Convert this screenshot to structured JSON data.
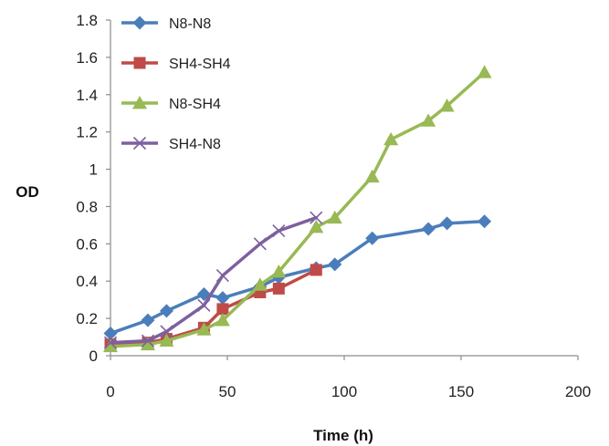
{
  "chart_data": {
    "type": "line",
    "title": "",
    "xlabel": "Time (h)",
    "ylabel": "OD",
    "xlim": [
      0,
      200
    ],
    "ylim": [
      0,
      1.8
    ],
    "xticks": [
      0,
      50,
      100,
      150,
      200
    ],
    "yticks": [
      0,
      0.2,
      0.4,
      0.6,
      0.8,
      1,
      1.2,
      1.4,
      1.6,
      1.8
    ],
    "grid": false,
    "legend_position": "top-left",
    "series": [
      {
        "name": "N8-N8",
        "color": "#4a7ebb",
        "marker": "diamond",
        "points": [
          [
            0,
            0.12
          ],
          [
            16,
            0.19
          ],
          [
            24,
            0.24
          ],
          [
            40,
            0.33
          ],
          [
            48,
            0.31
          ],
          [
            64,
            0.37
          ],
          [
            72,
            0.42
          ],
          [
            88,
            0.47
          ],
          [
            96,
            0.49
          ],
          [
            112,
            0.63
          ],
          [
            136,
            0.68
          ],
          [
            144,
            0.71
          ],
          [
            160,
            0.72
          ]
        ]
      },
      {
        "name": "SH4-SH4",
        "color": "#be4b48",
        "marker": "square",
        "points": [
          [
            0,
            0.06
          ],
          [
            16,
            0.07
          ],
          [
            24,
            0.09
          ],
          [
            40,
            0.15
          ],
          [
            48,
            0.25
          ],
          [
            64,
            0.34
          ],
          [
            72,
            0.36
          ],
          [
            88,
            0.46
          ]
        ]
      },
      {
        "name": "N8-SH4",
        "color": "#98b954",
        "marker": "triangle",
        "points": [
          [
            0,
            0.05
          ],
          [
            16,
            0.06
          ],
          [
            24,
            0.08
          ],
          [
            40,
            0.14
          ],
          [
            48,
            0.19
          ],
          [
            64,
            0.38
          ],
          [
            72,
            0.45
          ],
          [
            88,
            0.69
          ],
          [
            96,
            0.74
          ],
          [
            112,
            0.96
          ],
          [
            120,
            1.16
          ],
          [
            136,
            1.26
          ],
          [
            144,
            1.34
          ],
          [
            160,
            1.52
          ]
        ]
      },
      {
        "name": "SH4-N8",
        "color": "#7d60a0",
        "marker": "x",
        "points": [
          [
            0,
            0.07
          ],
          [
            16,
            0.08
          ],
          [
            24,
            0.13
          ],
          [
            40,
            0.27
          ],
          [
            48,
            0.43
          ],
          [
            64,
            0.6
          ],
          [
            72,
            0.67
          ],
          [
            88,
            0.74
          ]
        ]
      }
    ]
  }
}
